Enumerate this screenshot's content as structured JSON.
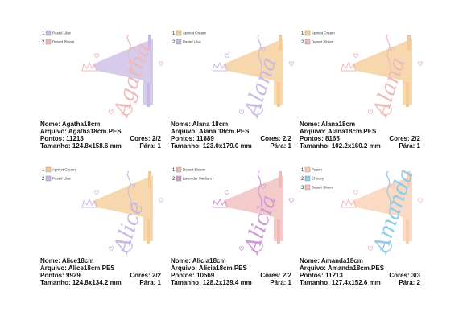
{
  "designs": [
    {
      "legend": [
        {
          "number": "1",
          "name": "Pastel Lilac",
          "color": "#c9b9e6"
        },
        {
          "number": "2",
          "name": "Desert Bloom",
          "color": "#f0b9b9"
        }
      ],
      "script": "Agatha",
      "nome": "Nome: Agatha18cm",
      "arquivo": "Arquivo: Agatha18cm.PES",
      "pontos": "Pontos: 11218",
      "cores": "Cores: 2/2",
      "tamanho": "Tamanho: 124.8x158.6 mm",
      "para": "Pára: 1"
    },
    {
      "legend": [
        {
          "number": "1",
          "name": "Apricot Cream",
          "color": "#f4cb93"
        },
        {
          "number": "2",
          "name": "Pastel Lilac",
          "color": "#c9b9e6"
        }
      ],
      "script": "Alana",
      "nome": "Nome: Alana 18cm",
      "arquivo": "Arquivo: Alana 18cm.PES",
      "pontos": "Pontos: 11889",
      "cores": "Cores: 2/2",
      "tamanho": "Tamanho: 123.0x179.0 mm",
      "para": "Pára: 1"
    },
    {
      "legend": [
        {
          "number": "1",
          "name": "Apricot Cream",
          "color": "#f4cb93"
        },
        {
          "number": "2",
          "name": "Desert Bloom",
          "color": "#f0b9b9"
        }
      ],
      "script": "Alana",
      "nome": "Nome: Alana18cm",
      "arquivo": "Arquivo: Alana18cm.PES",
      "pontos": "Pontos: 8165",
      "cores": "Cores: 2/2",
      "tamanho": "Tamanho: 102.2x160.2 mm",
      "para": "Pára: 1"
    },
    {
      "legend": [
        {
          "number": "1",
          "name": "Apricot Cream",
          "color": "#f4cb93"
        },
        {
          "number": "2",
          "name": "Pastel Lilac",
          "color": "#c9b9e6"
        }
      ],
      "script": "Alice",
      "nome": "Nome: Alice18cm",
      "arquivo": "Arquivo: Alice18cm.PES",
      "pontos": "Pontos: 9929",
      "cores": "Cores: 2/2",
      "tamanho": "Tamanho: 124.8x134.2 mm",
      "para": "Pára: 1"
    },
    {
      "legend": [
        {
          "number": "1",
          "name": "Desert Bloom",
          "color": "#f0b9b9"
        },
        {
          "number": "2",
          "name": "Lavender Medium I",
          "color": "#cf9ad6"
        }
      ],
      "script": "Alicia",
      "nome": "Nome: Alicia18cm",
      "arquivo": "Arquivo: Alicia18cm.PES",
      "pontos": "Pontos: 10569",
      "cores": "Cores: 2/2",
      "tamanho": "Tamanho: 128.2x139.4 mm",
      "para": "Pára: 1"
    },
    {
      "legend": [
        {
          "number": "1",
          "name": "Peach",
          "color": "#f8cdb0"
        },
        {
          "number": "2",
          "name": "Chicory",
          "color": "#8fcbea"
        },
        {
          "number": "3",
          "name": "Desert Bloom",
          "color": "#f0b9b9"
        }
      ],
      "script": "Amanda",
      "nome": "Nome: Amanda18cm",
      "arquivo": "Arquivo: Amanda18cm.PES",
      "pontos": "Pontos: 11213",
      "cores": "Cores: 3/3",
      "tamanho": "Tamanho: 127.4x152.6 mm",
      "para": "Pára: 2"
    }
  ]
}
